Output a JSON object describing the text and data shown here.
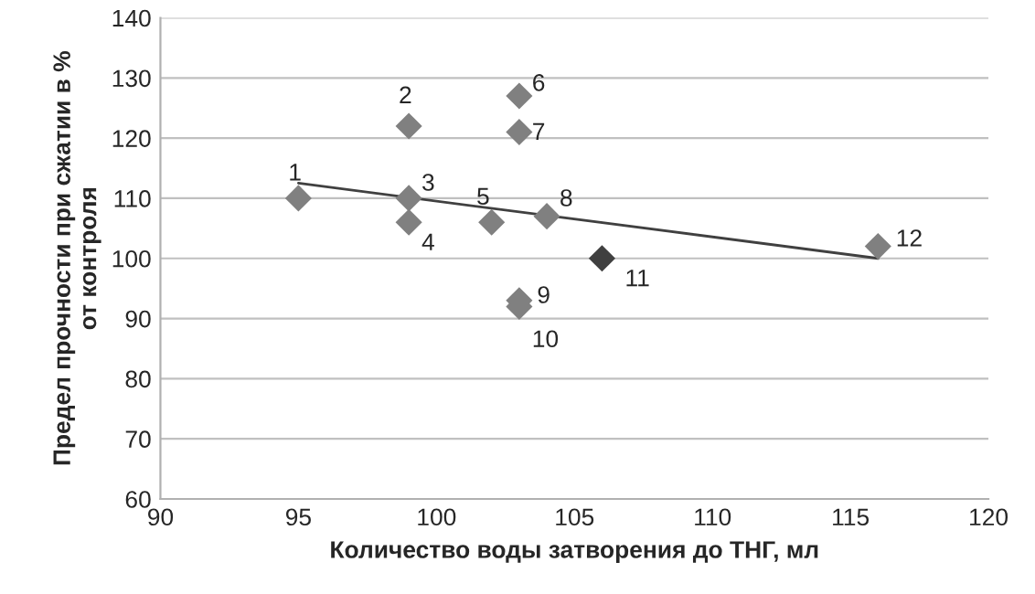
{
  "chart_data": {
    "type": "scatter",
    "xlabel": "Количество воды затворения до ТНГ, мл",
    "ylabel": "Предел прочности при сжатии в %\nот контроля",
    "x": [
      95,
      99,
      99,
      99,
      102,
      103,
      103,
      104,
      103,
      103,
      106,
      116
    ],
    "series": [
      {
        "marker": "diamond",
        "values": [
          110,
          122,
          110,
          106,
          106,
          127,
          121,
          107,
          93,
          92,
          100,
          102
        ],
        "colors": [
          "#808080",
          "#808080",
          "#808080",
          "#808080",
          "#808080",
          "#808080",
          "#808080",
          "#808080",
          "#808080",
          "#808080",
          "#404040",
          "#808080"
        ]
      },
      {
        "type": "line",
        "x": [
          95,
          116
        ],
        "values": [
          112.5,
          100
        ],
        "color": "#404040"
      }
    ],
    "annotations": [
      {
        "text": "1",
        "x": 95,
        "y": 110
      },
      {
        "text": "2",
        "x": 99,
        "y": 122
      },
      {
        "text": "3",
        "x": 99,
        "y": 110
      },
      {
        "text": "4",
        "x": 99,
        "y": 106
      },
      {
        "text": "5",
        "x": 102,
        "y": 106
      },
      {
        "text": "6",
        "x": 103,
        "y": 127
      },
      {
        "text": "7",
        "x": 103,
        "y": 121
      },
      {
        "text": "8",
        "x": 104,
        "y": 107
      },
      {
        "text": "9",
        "x": 103,
        "y": 93
      },
      {
        "text": "10",
        "x": 103,
        "y": 92
      },
      {
        "text": "11",
        "x": 106,
        "y": 100
      },
      {
        "text": "12",
        "x": 116,
        "y": 102
      }
    ],
    "xlim": [
      90,
      120
    ],
    "xticks": [
      90,
      95,
      100,
      105,
      110,
      115,
      120
    ],
    "ylim": [
      60,
      140
    ],
    "yticks": [
      60,
      70,
      80,
      90,
      100,
      110,
      120,
      130,
      140
    ],
    "grid": "y",
    "legend": false
  }
}
